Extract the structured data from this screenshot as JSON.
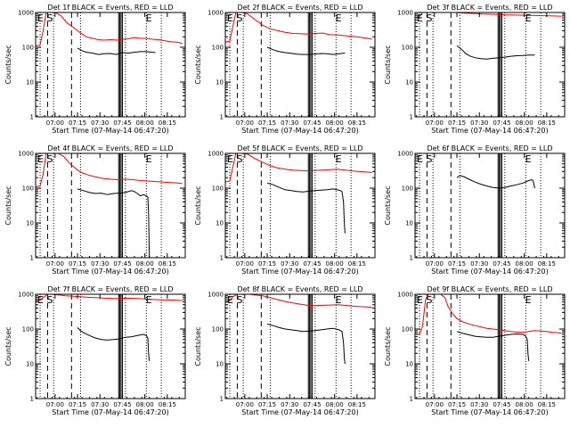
{
  "chart_data": {
    "type": "line",
    "panel_grid": "3x3",
    "x_tick_labels": [
      "07:00",
      "07:15",
      "07:30",
      "07:45",
      "08:00",
      "08:15"
    ],
    "x_ticks_minutes_after_0647": [
      13,
      28,
      43,
      58,
      73,
      88
    ],
    "x_range_minutes_after_0647": [
      0,
      100
    ],
    "y_scale": "log",
    "y_range": [
      1,
      1000
    ],
    "y_tick_labels": [
      "1",
      "10",
      "100",
      "1000"
    ],
    "grid": false,
    "colors": {
      "events": "#000000",
      "lld": "#ff0000"
    },
    "panels": [
      {
        "title": "Det 1f BLACK = Events, RED = LLD",
        "ylabel": "Counts/sec",
        "xlabel": "Start Time (07-May-14 06:47:20)",
        "marker_left": "E S",
        "marker_right": "E",
        "series": [
          {
            "color": "#ff0000",
            "x": [
              0,
              3,
              5,
              7,
              9,
              10,
              13,
              17,
              21,
              25,
              28,
              31,
              34,
              38,
              42,
              46,
              50,
              55,
              58,
              62,
              66,
              70,
              74,
              78,
              82,
              86,
              90,
              94,
              98
            ],
            "y": [
              110,
              115,
              300,
              1000,
              1000,
              1000,
              1000,
              800,
              500,
              380,
              300,
              240,
              200,
              180,
              165,
              160,
              165,
              160,
              170,
              175,
              190,
              180,
              180,
              170,
              165,
              155,
              145,
              140,
              130
            ]
          },
          {
            "color": "#000000",
            "x": [
              28,
              31,
              34,
              38,
              42,
              46,
              50,
              54,
              58,
              62,
              66,
              70,
              74,
              78,
              80
            ],
            "y": [
              95,
              80,
              72,
              68,
              62,
              65,
              66,
              62,
              70,
              68,
              72,
              75,
              75,
              72,
              70
            ]
          }
        ]
      },
      {
        "title": "Det 2f BLACK = Events, RED = LLD",
        "ylabel": "Counts/sec",
        "xlabel": "Start Time (07-May-14 06:47:20)",
        "marker_left": "E S",
        "marker_right": "E",
        "series": [
          {
            "color": "#ff0000",
            "x": [
              0,
              3,
              5,
              7,
              9,
              12,
              15,
              20,
              25,
              30,
              35,
              40,
              45,
              50,
              55,
              60,
              65,
              70,
              75,
              80,
              85,
              90,
              95,
              98
            ],
            "y": [
              140,
              150,
              400,
              1000,
              1000,
              1000,
              900,
              620,
              430,
              340,
              300,
              270,
              250,
              245,
              240,
              250,
              255,
              230,
              225,
              215,
              205,
              195,
              180,
              170
            ]
          },
          {
            "color": "#000000",
            "x": [
              28,
              32,
              36,
              40,
              44,
              48,
              52,
              56,
              60,
              64,
              68,
              72,
              76,
              80
            ],
            "y": [
              100,
              85,
              75,
              70,
              67,
              63,
              62,
              62,
              64,
              66,
              65,
              62,
              65,
              68
            ]
          }
        ]
      },
      {
        "title": "Det 3f BLACK = Events, RED = LLD",
        "ylabel": "Counts/sec",
        "xlabel": "Start Time (07-May-14 06:47:20)",
        "marker_left": "E S",
        "marker_right": "E",
        "series": [
          {
            "color": "#ff0000",
            "x": [
              0,
              3,
              5,
              7,
              9,
              15,
              20,
              28,
              35,
              45,
              55,
              60,
              65,
              70,
              75,
              80,
              85,
              90,
              95,
              98
            ],
            "y": [
              700,
              750,
              1000,
              1000,
              1000,
              1000,
              1000,
              1000,
              950,
              900,
              880,
              860,
              850,
              840,
              830,
              820,
              810,
              800,
              790,
              780
            ]
          },
          {
            "color": "#000000",
            "x": [
              28,
              30,
              32,
              34,
              37,
              40,
              44,
              48,
              52,
              56,
              60,
              64,
              68,
              72,
              76,
              80
            ],
            "y": [
              110,
              95,
              80,
              65,
              55,
              50,
              47,
              46,
              48,
              50,
              52,
              55,
              57,
              58,
              60,
              60
            ]
          }
        ]
      },
      {
        "title": "Det 4f BLACK = Events, RED = LLD",
        "ylabel": "Counts/sec",
        "xlabel": "Start Time (07-May-14 06:47:20)",
        "marker_left": "E S",
        "marker_right": "E",
        "series": [
          {
            "color": "#ff0000",
            "x": [
              0,
              3,
              5,
              7,
              9,
              12,
              15,
              19,
              23,
              27,
              30,
              35,
              40,
              45,
              50,
              55,
              60,
              65,
              70,
              75,
              80,
              85,
              90,
              95,
              98
            ],
            "y": [
              110,
              115,
              250,
              1000,
              1000,
              1000,
              1000,
              800,
              500,
              360,
              290,
              240,
              210,
              190,
              180,
              175,
              180,
              175,
              165,
              160,
              155,
              150,
              145,
              140,
              135
            ]
          },
          {
            "color": "#000000",
            "x": [
              28,
              32,
              36,
              40,
              44,
              48,
              52,
              56,
              60,
              64,
              66,
              68,
              70,
              72,
              74,
              75,
              75.5,
              76
            ],
            "y": [
              95,
              85,
              75,
              70,
              72,
              65,
              70,
              72,
              75,
              85,
              80,
              70,
              60,
              65,
              60,
              55,
              20,
              1
            ]
          }
        ]
      },
      {
        "title": "Det 5f BLACK = Events, RED = LLD",
        "ylabel": "Counts/sec",
        "xlabel": "Start Time (07-May-14 06:47:20)",
        "marker_left": "E S",
        "marker_right": "E",
        "series": [
          {
            "color": "#ff0000",
            "x": [
              0,
              3,
              5,
              7,
              9,
              12,
              15,
              20,
              25,
              30,
              35,
              40,
              45,
              50,
              55,
              60,
              65,
              70,
              75,
              80,
              85,
              90,
              95,
              98
            ],
            "y": [
              150,
              160,
              400,
              1000,
              1000,
              1000,
              950,
              700,
              550,
              440,
              380,
              350,
              330,
              320,
              310,
              320,
              330,
              340,
              350,
              330,
              310,
              300,
              290,
              280
            ]
          },
          {
            "color": "#000000",
            "x": [
              28,
              32,
              36,
              40,
              44,
              48,
              52,
              56,
              60,
              64,
              68,
              72,
              76,
              78,
              79,
              79.5,
              80
            ],
            "y": [
              140,
              125,
              105,
              90,
              85,
              80,
              78,
              82,
              85,
              88,
              90,
              95,
              88,
              80,
              40,
              10,
              5
            ]
          }
        ]
      },
      {
        "title": "Det 6f BLACK = Events, RED = LLD",
        "ylabel": "Counts/sec",
        "xlabel": "Start Time (07-May-14 06:47:20)",
        "marker_left": "E S",
        "marker_right": "E",
        "series": [
          {
            "color": "#000000",
            "x": [
              28,
              30,
              33,
              36,
              40,
              44,
              48,
              52,
              56,
              60,
              64,
              68,
              72,
              76,
              78,
              79,
              80
            ],
            "y": [
              200,
              230,
              210,
              180,
              150,
              130,
              115,
              105,
              100,
              105,
              115,
              125,
              140,
              165,
              175,
              160,
              100
            ]
          }
        ]
      },
      {
        "title": "Det 7f BLACK = Events, RED = LLD",
        "ylabel": "Counts/sec",
        "xlabel": "Start Time (07-May-14 06:47:20)",
        "marker_left": "E S",
        "marker_right": "E",
        "series": [
          {
            "color": "#ff0000",
            "x": [
              0,
              3,
              5,
              8,
              12,
              16,
              20,
              25,
              30,
              35,
              40,
              45,
              50,
              55,
              60,
              65,
              70,
              75,
              80,
              85,
              90,
              95,
              98
            ],
            "y": [
              650,
              700,
              800,
              1000,
              1000,
              950,
              900,
              880,
              850,
              820,
              800,
              780,
              760,
              750,
              770,
              760,
              750,
              720,
              700,
              690,
              680,
              670,
              650
            ]
          },
          {
            "color": "#000000",
            "x": [
              28,
              30,
              33,
              36,
              40,
              44,
              48,
              52,
              56,
              60,
              64,
              68,
              72,
              74,
              75,
              75.5,
              76
            ],
            "y": [
              110,
              90,
              75,
              65,
              55,
              50,
              48,
              50,
              52,
              58,
              60,
              65,
              70,
              65,
              55,
              20,
              12
            ]
          }
        ]
      },
      {
        "title": "Det 8f BLACK = Events, RED = LLD",
        "ylabel": "Counts/sec",
        "xlabel": "Start Time (07-May-14 06:47:20)",
        "marker_left": "E S",
        "marker_right": "E",
        "series": [
          {
            "color": "#ff0000",
            "x": [
              0,
              3,
              5,
              8,
              12,
              16,
              20,
              25,
              30,
              35,
              40,
              45,
              50,
              55,
              60,
              65,
              70,
              75,
              80,
              85,
              90,
              95,
              98
            ],
            "y": [
              600,
              650,
              850,
              1000,
              1000,
              1000,
              950,
              900,
              800,
              700,
              620,
              560,
              520,
              480,
              470,
              480,
              490,
              500,
              480,
              460,
              440,
              430,
              420
            ]
          },
          {
            "color": "#000000",
            "x": [
              28,
              32,
              36,
              40,
              44,
              48,
              52,
              56,
              60,
              64,
              68,
              72,
              76,
              78,
              79,
              79.5,
              80
            ],
            "y": [
              140,
              125,
              110,
              100,
              95,
              90,
              85,
              88,
              90,
              95,
              100,
              105,
              95,
              85,
              40,
              15,
              10
            ]
          }
        ]
      },
      {
        "title": "Det 9f BLACK = Events, RED = LLD",
        "ylabel": "Counts/sec",
        "xlabel": "Start Time (07-May-14 06:47:20)",
        "marker_left": "E S",
        "marker_right": "E",
        "series": [
          {
            "color": "#ff0000",
            "x": [
              0,
              3,
              5,
              7,
              9,
              13,
              17,
              20,
              22,
              25,
              28,
              32,
              36,
              40,
              44,
              48,
              52,
              56,
              60,
              64,
              68,
              72,
              76,
              80,
              84,
              88,
              92,
              96,
              98
            ],
            "y": [
              70,
              72,
              120,
              700,
              1000,
              1000,
              1000,
              800,
              450,
              280,
              200,
              160,
              140,
              125,
              115,
              105,
              100,
              95,
              90,
              85,
              82,
              80,
              85,
              90,
              88,
              85,
              80,
              78,
              75
            ]
          },
          {
            "color": "#000000",
            "x": [
              28,
              32,
              36,
              40,
              44,
              48,
              52,
              56,
              60,
              64,
              68,
              72,
              74,
              75,
              75.5,
              76
            ],
            "y": [
              85,
              75,
              68,
              62,
              60,
              58,
              58,
              62,
              66,
              70,
              72,
              70,
              62,
              50,
              20,
              12
            ]
          }
        ]
      }
    ]
  }
}
